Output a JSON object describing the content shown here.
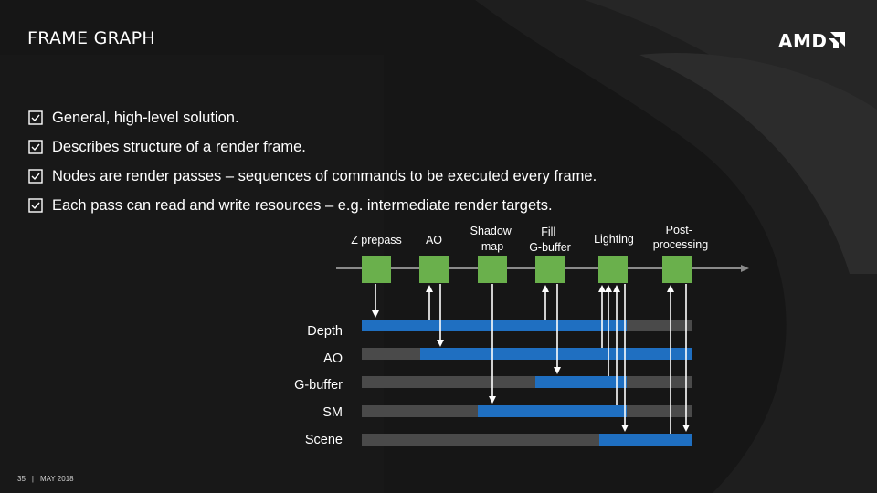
{
  "slide": {
    "title": "FRAME GRAPH",
    "logo_text": "AMD",
    "bullets": [
      "General, high-level solution.",
      "Describes structure of a render frame.",
      "Nodes are render passes – sequences of commands to be executed every frame.",
      "Each pass can read and write resources – e.g. intermediate render targets."
    ],
    "footer": {
      "page": "35",
      "separator": "|",
      "date": "MAY 2018"
    }
  },
  "diagram": {
    "passes": [
      {
        "lines": [
          "Z prepass"
        ]
      },
      {
        "lines": [
          "AO"
        ]
      },
      {
        "lines": [
          "Shadow",
          "map"
        ]
      },
      {
        "lines": [
          "Fill",
          "G-buffer"
        ]
      },
      {
        "lines": [
          "Lighting"
        ]
      },
      {
        "lines": [
          "Post-",
          "processing"
        ]
      }
    ],
    "resources": [
      "Depth",
      "AO",
      "G-buffer",
      "SM",
      "Scene"
    ],
    "colors": {
      "pass_node": "#6ab04c",
      "resource_active": "#1f6fc1",
      "resource_idle": "#4a4a4a",
      "timeline": "#8a8a8a",
      "arrow": "#ffffff"
    }
  }
}
